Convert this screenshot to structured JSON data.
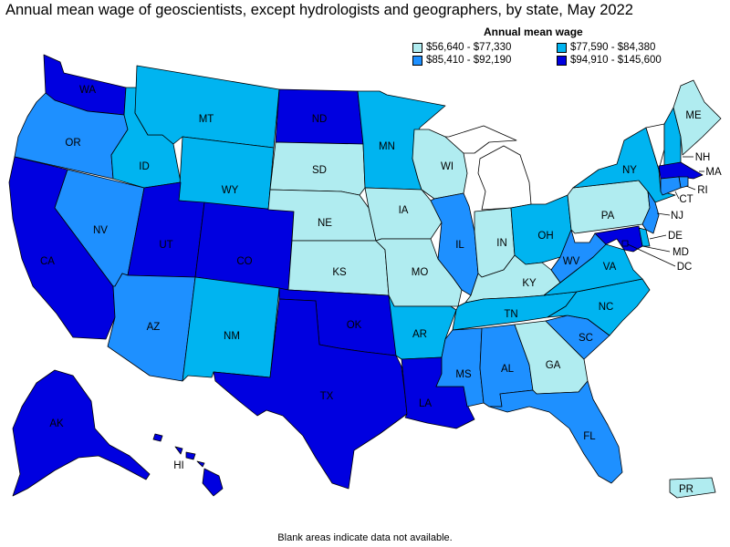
{
  "title": "Annual mean wage of geoscientists, except hydrologists and geographers, by state, May 2022",
  "legend": {
    "title": "Annual mean wage",
    "items": [
      {
        "label": "$56,640 - $77,330",
        "color": "#b0ecf0"
      },
      {
        "label": "$77,590 - $84,380",
        "color": "#00b4f0"
      },
      {
        "label": "$85,410 - $92,190",
        "color": "#1e90ff"
      },
      {
        "label": "$94,910 - $145,600",
        "color": "#0000e0"
      }
    ]
  },
  "footnote": "Blank areas indicate data not available.",
  "states": {
    "WA": {
      "label": "WA",
      "bin": 3
    },
    "OR": {
      "label": "OR",
      "bin": 2
    },
    "CA": {
      "label": "CA",
      "bin": 3
    },
    "NV": {
      "label": "NV",
      "bin": 2
    },
    "ID": {
      "label": "ID",
      "bin": 1
    },
    "MT": {
      "label": "MT",
      "bin": 1
    },
    "WY": {
      "label": "WY",
      "bin": 1
    },
    "UT": {
      "label": "UT",
      "bin": 3
    },
    "CO": {
      "label": "CO",
      "bin": 3
    },
    "AZ": {
      "label": "AZ",
      "bin": 2
    },
    "NM": {
      "label": "NM",
      "bin": 1
    },
    "ND": {
      "label": "ND",
      "bin": 3
    },
    "SD": {
      "label": "SD",
      "bin": 0
    },
    "NE": {
      "label": "NE",
      "bin": 0
    },
    "KS": {
      "label": "KS",
      "bin": 0
    },
    "OK": {
      "label": "OK",
      "bin": 3
    },
    "TX": {
      "label": "TX",
      "bin": 3
    },
    "MN": {
      "label": "MN",
      "bin": 1
    },
    "IA": {
      "label": "IA",
      "bin": 0
    },
    "MO": {
      "label": "MO",
      "bin": 0
    },
    "AR": {
      "label": "AR",
      "bin": 1
    },
    "LA": {
      "label": "LA",
      "bin": 3
    },
    "WI": {
      "label": "WI",
      "bin": 0
    },
    "IL": {
      "label": "IL",
      "bin": 2
    },
    "MI": {
      "label": "",
      "bin": null
    },
    "IN": {
      "label": "IN",
      "bin": 0
    },
    "OH": {
      "label": "OH",
      "bin": 1
    },
    "KY": {
      "label": "KY",
      "bin": 0
    },
    "TN": {
      "label": "TN",
      "bin": 1
    },
    "MS": {
      "label": "MS",
      "bin": 2
    },
    "AL": {
      "label": "AL",
      "bin": 2
    },
    "GA": {
      "label": "GA",
      "bin": 0
    },
    "FL": {
      "label": "FL",
      "bin": 2
    },
    "SC": {
      "label": "SC",
      "bin": 2
    },
    "NC": {
      "label": "NC",
      "bin": 1
    },
    "VA": {
      "label": "VA",
      "bin": 1
    },
    "WV": {
      "label": "WV",
      "bin": 2
    },
    "PA": {
      "label": "PA",
      "bin": 0
    },
    "NY": {
      "label": "NY",
      "bin": 1
    },
    "VT": {
      "label": "",
      "bin": null
    },
    "NH": {
      "label": "NH",
      "bin": 1
    },
    "ME": {
      "label": "ME",
      "bin": 0
    },
    "MA": {
      "label": "MA",
      "bin": 3
    },
    "RI": {
      "label": "RI",
      "bin": 2
    },
    "CT": {
      "label": "CT",
      "bin": 2
    },
    "NJ": {
      "label": "NJ",
      "bin": 2
    },
    "DE": {
      "label": "DE",
      "bin": 1
    },
    "MD": {
      "label": "MD",
      "bin": 3
    },
    "DC": {
      "label": "DC",
      "bin": 3
    },
    "AK": {
      "label": "AK",
      "bin": 3
    },
    "HI": {
      "label": "HI",
      "bin": 3
    },
    "PR": {
      "label": "PR",
      "bin": 0
    }
  }
}
